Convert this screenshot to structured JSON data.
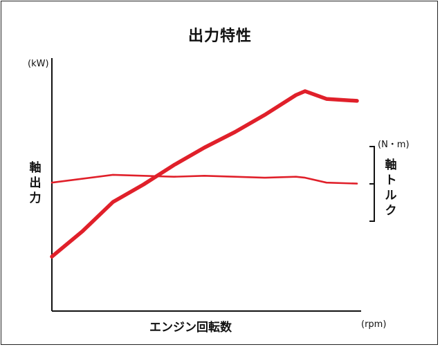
{
  "chart_data": {
    "type": "line",
    "title": "出力特性",
    "xlabel": "エンジン回転数",
    "x_unit": "(rpm)",
    "ylabel": "軸出力",
    "y_unit": "(kW)",
    "y2label": "軸トルク",
    "y2_unit": "(N・m)",
    "x": [
      0,
      10,
      20,
      30,
      40,
      50,
      60,
      70,
      80,
      83,
      90,
      100
    ],
    "series": [
      {
        "name": "軸出力",
        "axis": "left",
        "color": "#e0202a",
        "values": [
          28,
          41,
          56,
          65,
          75,
          84,
          92,
          101,
          111,
          113,
          109,
          108
        ]
      },
      {
        "name": "軸トルク",
        "axis": "right",
        "color": "#e0202a",
        "values": [
          66,
          68,
          70,
          69.5,
          69,
          69.5,
          69,
          68.5,
          69,
          68.5,
          66,
          65.5
        ]
      }
    ],
    "ylim": [
      0,
      130
    ],
    "y2lim": [
      0,
      130
    ],
    "xlim": [
      0,
      100
    ],
    "grid": false,
    "legend": "none"
  }
}
